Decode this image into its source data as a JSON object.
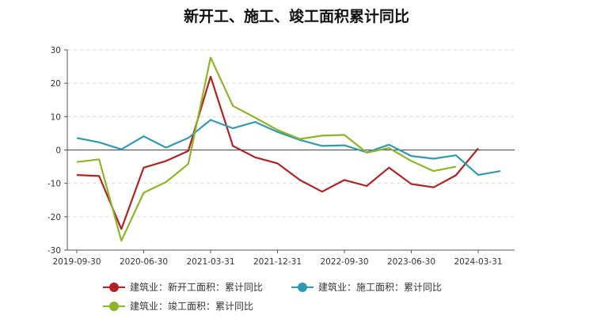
{
  "chart_data": {
    "type": "line",
    "title": "新开工、施工、竣工面积累计同比",
    "x_ticks": [
      "2019-09-30",
      "2020-06-30",
      "2021-03-31",
      "2021-12-31",
      "2022-09-30",
      "2023-06-30",
      "2024-03-31"
    ],
    "x": [
      "2019-09-30",
      "2019-12-31",
      "2020-03-31",
      "2020-06-30",
      "2020-09-30",
      "2020-12-31",
      "2021-03-31",
      "2021-06-30",
      "2021-09-30",
      "2021-12-31",
      "2022-03-31",
      "2022-06-30",
      "2022-09-30",
      "2022-12-31",
      "2023-03-31",
      "2023-06-30",
      "2023-09-30",
      "2023-12-31",
      "2024-03-31",
      "2024-06-30"
    ],
    "ylim": [
      -30,
      30
    ],
    "y_ticks": [
      -30,
      -20,
      -10,
      0,
      10,
      20,
      30
    ],
    "grid": true,
    "legend_position": "bottom",
    "series": [
      {
        "name": "建筑业：新开工面积：累计同比",
        "color": "#b22222",
        "values": [
          -7.5,
          -7.8,
          -23.7,
          -5.3,
          -3.3,
          -0.3,
          22.0,
          1.2,
          -2.2,
          -4.0,
          -9.0,
          -12.5,
          -9.0,
          -10.8,
          -5.3,
          -10.2,
          -11.2,
          -7.6,
          0.5,
          null
        ]
      },
      {
        "name": "建筑业：施工面积：累计同比",
        "color": "#2e9ab5",
        "values": [
          3.6,
          2.3,
          0.2,
          4.1,
          0.7,
          3.6,
          9.0,
          6.5,
          8.4,
          5.4,
          3.0,
          1.2,
          1.4,
          -0.7,
          1.6,
          -1.8,
          -2.6,
          -1.6,
          -7.5,
          -6.3
        ]
      },
      {
        "name": "建筑业：竣工面积：累计同比",
        "color": "#8db526",
        "values": [
          -3.6,
          -2.8,
          -27.2,
          -12.8,
          -9.6,
          -4.2,
          27.7,
          13.2,
          9.7,
          6.0,
          3.3,
          4.3,
          4.5,
          -0.8,
          0.6,
          -3.3,
          -6.3,
          -5.0,
          null,
          null
        ]
      }
    ]
  }
}
